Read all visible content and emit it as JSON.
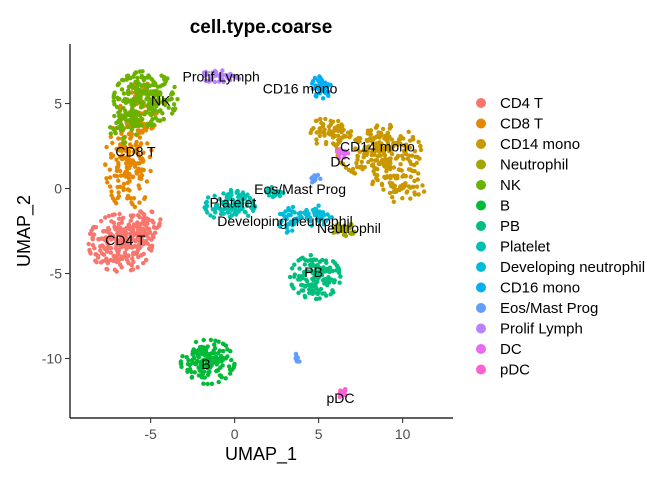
{
  "chart_data": {
    "type": "scatter",
    "title": "cell.type.coarse",
    "xlabel": "UMAP_1",
    "ylabel": "UMAP_2",
    "xlim": [
      -9.8,
      13.0
    ],
    "ylim": [
      -13.5,
      8.5
    ],
    "xticks": [
      -5,
      0,
      5,
      10
    ],
    "yticks": [
      -10,
      -5,
      0,
      5
    ],
    "grid": false,
    "legend_position": "right",
    "series": [
      {
        "name": "CD4 T",
        "color": "#F8766D",
        "clusters": [
          {
            "cx": -6.8,
            "cy": -3.2,
            "rx": 1.9,
            "ry": 1.7,
            "n": 240
          },
          {
            "cx": -5.3,
            "cy": -2.2,
            "rx": 1.0,
            "ry": 0.9,
            "n": 60
          }
        ]
      },
      {
        "name": "CD8 T",
        "color": "#E58700",
        "clusters": [
          {
            "cx": -6.3,
            "cy": 1.5,
            "rx": 1.4,
            "ry": 2.8,
            "n": 180
          },
          {
            "cx": -5.5,
            "cy": 4.8,
            "rx": 1.3,
            "ry": 1.4,
            "n": 60
          }
        ]
      },
      {
        "name": "CD14 mono",
        "color": "#C99800",
        "clusters": [
          {
            "cx": 8.6,
            "cy": 2.2,
            "rx": 2.5,
            "ry": 1.6,
            "n": 220
          },
          {
            "cx": 5.5,
            "cy": 3.3,
            "rx": 1.0,
            "ry": 0.9,
            "n": 60
          },
          {
            "cx": 9.8,
            "cy": 0.2,
            "rx": 1.6,
            "ry": 1.0,
            "n": 70
          }
        ]
      },
      {
        "name": "Neutrophil",
        "color": "#A3A500",
        "clusters": [
          {
            "cx": 6.5,
            "cy": -2.4,
            "rx": 0.7,
            "ry": 0.4,
            "n": 40
          }
        ]
      },
      {
        "name": "NK",
        "color": "#6BB100",
        "clusters": [
          {
            "cx": -5.3,
            "cy": 5.3,
            "rx": 1.9,
            "ry": 1.6,
            "n": 220
          },
          {
            "cx": -6.6,
            "cy": 3.8,
            "rx": 0.9,
            "ry": 1.1,
            "n": 50
          }
        ]
      },
      {
        "name": "B",
        "color": "#00BA38",
        "clusters": [
          {
            "cx": -1.6,
            "cy": -10.2,
            "rx": 1.6,
            "ry": 1.3,
            "n": 160
          }
        ]
      },
      {
        "name": "PB",
        "color": "#00BF7D",
        "clusters": [
          {
            "cx": 4.8,
            "cy": -5.2,
            "rx": 1.5,
            "ry": 1.3,
            "n": 140
          }
        ]
      },
      {
        "name": "Platelet",
        "color": "#00C0AF",
        "clusters": [
          {
            "cx": -0.3,
            "cy": -1.0,
            "rx": 1.5,
            "ry": 0.9,
            "n": 110
          },
          {
            "cx": 2.4,
            "cy": -0.2,
            "rx": 0.5,
            "ry": 0.3,
            "n": 20
          }
        ]
      },
      {
        "name": "Developing neutrophil",
        "color": "#00BCD8",
        "clusters": [
          {
            "cx": 3.2,
            "cy": -1.8,
            "rx": 0.6,
            "ry": 0.8,
            "n": 40
          },
          {
            "cx": 4.8,
            "cy": -1.6,
            "rx": 1.0,
            "ry": 0.6,
            "n": 50
          }
        ]
      },
      {
        "name": "CD16 mono",
        "color": "#00B0F6",
        "clusters": [
          {
            "cx": 5.2,
            "cy": 6.0,
            "rx": 0.6,
            "ry": 0.7,
            "n": 50
          }
        ]
      },
      {
        "name": "Eos/Mast Prog",
        "color": "#619CFF",
        "clusters": [
          {
            "cx": 4.8,
            "cy": 0.6,
            "rx": 0.3,
            "ry": 0.3,
            "n": 12
          },
          {
            "cx": 3.7,
            "cy": -10.0,
            "rx": 0.2,
            "ry": 0.3,
            "n": 10
          }
        ]
      },
      {
        "name": "Prolif Lymph",
        "color": "#B983FF",
        "clusters": [
          {
            "cx": -0.8,
            "cy": 6.6,
            "rx": 1.2,
            "ry": 0.4,
            "n": 40
          }
        ]
      },
      {
        "name": "DC",
        "color": "#E76BF3",
        "clusters": [
          {
            "cx": 6.4,
            "cy": 2.1,
            "rx": 0.4,
            "ry": 0.3,
            "n": 18
          }
        ]
      },
      {
        "name": "pDC",
        "color": "#FD61D1",
        "clusters": [
          {
            "cx": 6.4,
            "cy": -12.0,
            "rx": 0.2,
            "ry": 0.5,
            "n": 15
          }
        ]
      }
    ],
    "cluster_labels": [
      {
        "text": "CD4 T",
        "x": -6.5,
        "y": -3.1
      },
      {
        "text": "CD8 T",
        "x": -5.9,
        "y": 2.1
      },
      {
        "text": "NK",
        "x": -4.4,
        "y": 5.1
      },
      {
        "text": "Prolif Lymph",
        "x": -0.8,
        "y": 6.5
      },
      {
        "text": "CD16 mono",
        "x": 3.9,
        "y": 5.8
      },
      {
        "text": "CD14 mono",
        "x": 8.5,
        "y": 2.4
      },
      {
        "text": "DC",
        "x": 6.3,
        "y": 1.5
      },
      {
        "text": "Eos/Mast Prog",
        "x": 3.9,
        "y": -0.1
      },
      {
        "text": "Platelet",
        "x": -0.1,
        "y": -0.9
      },
      {
        "text": "Developing neutrophil",
        "x": 3.0,
        "y": -2.0
      },
      {
        "text": "Neutrophil",
        "x": 6.8,
        "y": -2.4
      },
      {
        "text": "PB",
        "x": 4.7,
        "y": -5.0
      },
      {
        "text": "B",
        "x": -1.7,
        "y": -10.4
      },
      {
        "text": "pDC",
        "x": 6.3,
        "y": -12.4
      }
    ]
  }
}
